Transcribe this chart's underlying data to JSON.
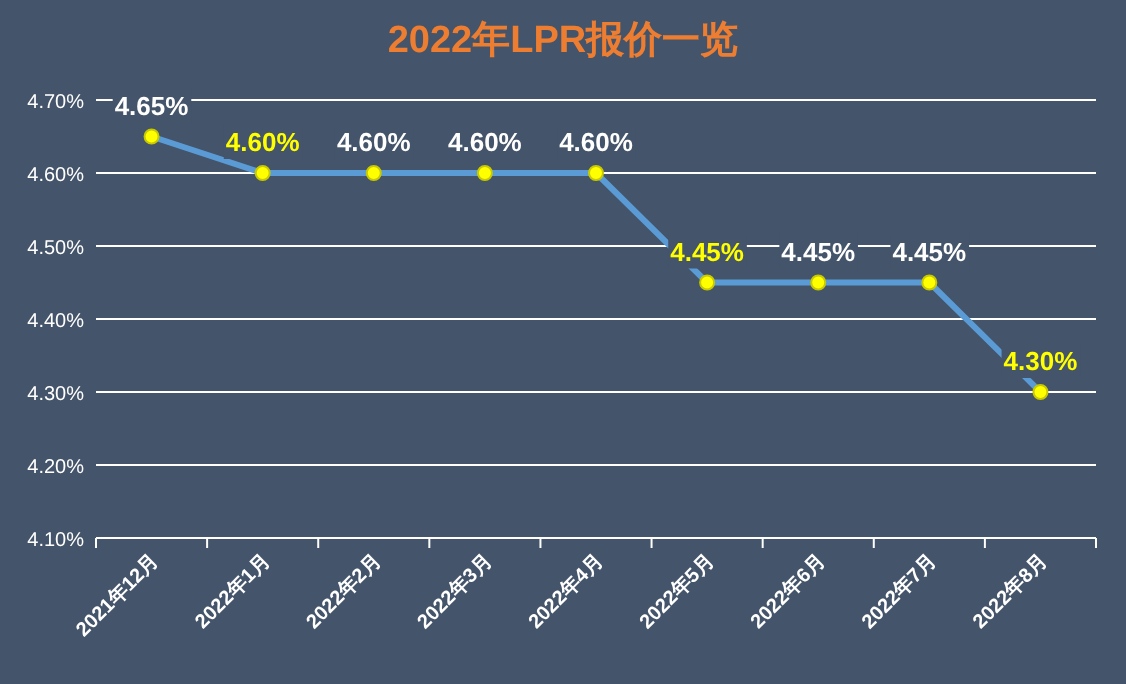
{
  "chart_data": {
    "type": "line",
    "title": "2022年LPR报价一览",
    "categories": [
      "2021年12月",
      "2022年1月",
      "2022年2月",
      "2022年3月",
      "2022年4月",
      "2022年5月",
      "2022年6月",
      "2022年7月",
      "2022年8月"
    ],
    "series": [
      {
        "color": "#5b9bd5",
        "values": [
          4.65,
          4.6,
          4.6,
          4.6,
          4.6,
          4.45,
          4.45,
          4.45,
          4.3
        ],
        "value_labels": [
          "4.65%",
          "4.60%",
          "4.60%",
          "4.60%",
          "4.60%",
          "4.45%",
          "4.45%",
          "4.45%",
          "4.30%"
        ]
      }
    ],
    "ylim": [
      4.1,
      4.7
    ],
    "yticks": [
      {
        "value": 4.1,
        "label": "4.10%"
      },
      {
        "value": 4.2,
        "label": "4.20%"
      },
      {
        "value": 4.3,
        "label": "4.30%"
      },
      {
        "value": 4.4,
        "label": "4.40%"
      },
      {
        "value": 4.5,
        "label": "4.50%"
      },
      {
        "value": 4.6,
        "label": "4.60%"
      },
      {
        "value": 4.7,
        "label": "4.70%"
      }
    ],
    "grid": "y",
    "marker": "circle",
    "line_style": "solid"
  }
}
